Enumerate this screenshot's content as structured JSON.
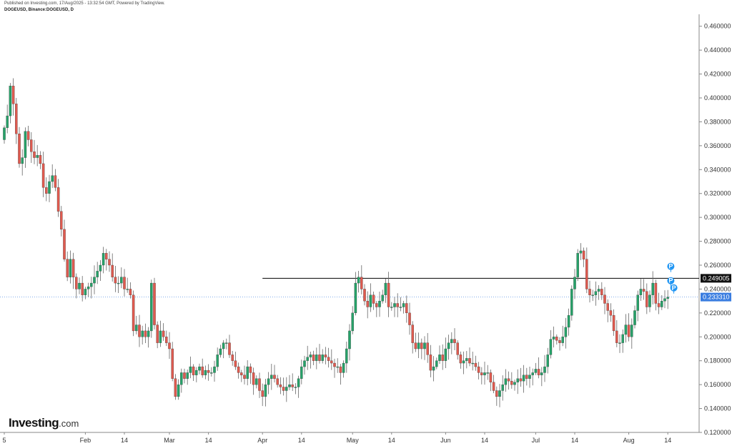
{
  "header": {
    "published": "Published on Investing.com, 17/Aug/2025 - 13:32:54 GMT, Powered by TradingView.",
    "symbol": "DOGEUSD, Binance:DOGEUSD, D"
  },
  "logo": {
    "main": "Investing",
    "domain": ".com"
  },
  "colors": {
    "up": "#26a269",
    "down": "#e05a4f",
    "wick": "#666666",
    "current": "#3a7de0",
    "level": "#000000",
    "pivot": "#2196f3"
  },
  "chart_data": {
    "type": "candlestick",
    "ylim": [
      0.12,
      0.47
    ],
    "y_ticks": [
      "0.120000",
      "0.140000",
      "0.160000",
      "0.180000",
      "0.200000",
      "0.220000",
      "0.240000",
      "0.260000",
      "0.280000",
      "0.300000",
      "0.320000",
      "0.340000",
      "0.360000",
      "0.380000",
      "0.400000",
      "0.420000",
      "0.440000",
      "0.460000"
    ],
    "x_labels": [
      {
        "label": "5",
        "date": "2025-01-05"
      },
      {
        "label": "Feb",
        "date": "2025-02-01"
      },
      {
        "label": "14",
        "date": "2025-02-14"
      },
      {
        "label": "Mar",
        "date": "2025-03-01"
      },
      {
        "label": "14",
        "date": "2025-03-14"
      },
      {
        "label": "Apr",
        "date": "2025-04-01"
      },
      {
        "label": "14",
        "date": "2025-04-14"
      },
      {
        "label": "May",
        "date": "2025-05-01"
      },
      {
        "label": "14",
        "date": "2025-05-14"
      },
      {
        "label": "Jun",
        "date": "2025-06-01"
      },
      {
        "label": "14",
        "date": "2025-06-14"
      },
      {
        "label": "Jul",
        "date": "2025-07-01"
      },
      {
        "label": "14",
        "date": "2025-07-14"
      },
      {
        "label": "Aug",
        "date": "2025-08-01"
      },
      {
        "label": "14",
        "date": "2025-08-14"
      }
    ],
    "start_date": "2025-01-05",
    "closes": [
      0.375,
      0.385,
      0.41,
      0.395,
      0.37,
      0.345,
      0.35,
      0.372,
      0.365,
      0.355,
      0.35,
      0.352,
      0.345,
      0.325,
      0.32,
      0.33,
      0.335,
      0.325,
      0.305,
      0.29,
      0.265,
      0.25,
      0.265,
      0.25,
      0.24,
      0.245,
      0.235,
      0.24,
      0.242,
      0.245,
      0.25,
      0.255,
      0.26,
      0.27,
      0.265,
      0.26,
      0.25,
      0.245,
      0.245,
      0.25,
      0.24,
      0.24,
      0.235,
      0.205,
      0.21,
      0.2,
      0.205,
      0.2,
      0.205,
      0.245,
      0.21,
      0.195,
      0.205,
      0.2,
      0.195,
      0.19,
      0.165,
      0.15,
      0.16,
      0.17,
      0.165,
      0.17,
      0.175,
      0.168,
      0.172,
      0.175,
      0.168,
      0.172,
      0.17,
      0.17,
      0.175,
      0.185,
      0.19,
      0.195,
      0.195,
      0.185,
      0.18,
      0.175,
      0.17,
      0.168,
      0.165,
      0.175,
      0.17,
      0.16,
      0.165,
      0.155,
      0.15,
      0.16,
      0.165,
      0.168,
      0.165,
      0.16,
      0.158,
      0.155,
      0.158,
      0.16,
      0.158,
      0.158,
      0.165,
      0.175,
      0.18,
      0.183,
      0.185,
      0.18,
      0.185,
      0.18,
      0.185,
      0.183,
      0.18,
      0.178,
      0.175,
      0.175,
      0.17,
      0.178,
      0.19,
      0.205,
      0.22,
      0.245,
      0.25,
      0.24,
      0.23,
      0.225,
      0.235,
      0.228,
      0.225,
      0.23,
      0.235,
      0.245,
      0.225,
      0.225,
      0.228,
      0.225,
      0.225,
      0.228,
      0.22,
      0.21,
      0.195,
      0.19,
      0.195,
      0.19,
      0.195,
      0.185,
      0.172,
      0.175,
      0.18,
      0.185,
      0.18,
      0.19,
      0.195,
      0.198,
      0.195,
      0.185,
      0.178,
      0.18,
      0.182,
      0.178,
      0.178,
      0.175,
      0.17,
      0.168,
      0.17,
      0.17,
      0.162,
      0.155,
      0.15,
      0.155,
      0.16,
      0.165,
      0.163,
      0.16,
      0.162,
      0.165,
      0.163,
      0.168,
      0.165,
      0.168,
      0.17,
      0.173,
      0.168,
      0.17,
      0.175,
      0.185,
      0.198,
      0.2,
      0.197,
      0.195,
      0.2,
      0.208,
      0.218,
      0.24,
      0.25,
      0.27,
      0.272,
      0.265,
      0.24,
      0.235,
      0.235,
      0.238,
      0.24,
      0.235,
      0.228,
      0.222,
      0.218,
      0.205,
      0.195,
      0.195,
      0.202,
      0.21,
      0.2,
      0.21,
      0.222,
      0.235,
      0.24,
      0.238,
      0.225,
      0.235,
      0.245,
      0.228,
      0.225,
      0.23,
      0.232,
      0.2333
    ],
    "current_price": 0.23331,
    "current_label": "0.233310",
    "level_price": 0.249005,
    "level_label": "0.249005",
    "level_start_date": "2025-04-01",
    "pivot_markers": [
      {
        "label": "P",
        "date": "2025-08-15",
        "price": 0.247
      },
      {
        "label": "P",
        "date": "2025-08-15",
        "price": 0.259
      },
      {
        "label": "P",
        "date": "2025-08-16",
        "price": 0.241
      }
    ]
  }
}
